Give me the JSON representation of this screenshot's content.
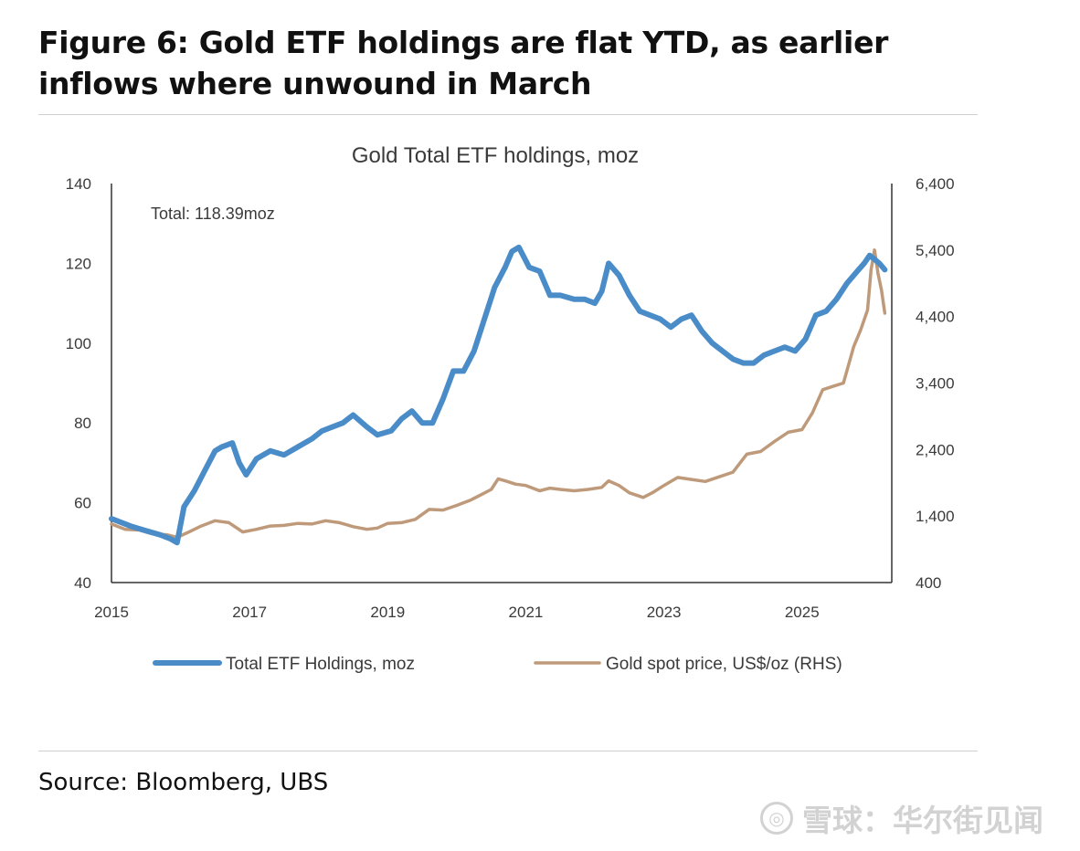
{
  "figure": {
    "title": "Figure 6: Gold ETF holdings are flat YTD, as earlier inflows where unwound in March",
    "source": "Source: Bloomberg, UBS"
  },
  "watermark": {
    "logo_glyph": "◎",
    "text": "雪球：华尔街见闻"
  },
  "chart_data": {
    "type": "line",
    "title": "Gold Total ETF holdings, moz",
    "annotation": "Total: 118.39moz",
    "x_ticks": [
      "2015",
      "2017",
      "2019",
      "2021",
      "2023",
      "2025"
    ],
    "xlim": [
      2015.0,
      2026.3
    ],
    "y_left": {
      "ticks": [
        "40",
        "60",
        "80",
        "100",
        "120",
        "140"
      ],
      "lim": [
        40,
        140
      ]
    },
    "y_right": {
      "ticks": [
        "400",
        "1,400",
        "2,400",
        "3,400",
        "4,400",
        "5,400",
        "6,400"
      ],
      "lim": [
        400,
        6400
      ]
    },
    "grid": false,
    "legend_position": "bottom",
    "colors": {
      "holdings": "#4a8cc8",
      "gold": "#bf9a7a",
      "axis": "#333333",
      "text": "#3a3a3a"
    },
    "series": [
      {
        "name": "Total ETF Holdings, moz",
        "axis": "left",
        "x": [
          2015.0,
          2015.15,
          2015.3,
          2015.5,
          2015.7,
          2015.85,
          2015.95,
          2016.05,
          2016.2,
          2016.35,
          2016.5,
          2016.6,
          2016.75,
          2016.85,
          2016.95,
          2017.1,
          2017.3,
          2017.5,
          2017.7,
          2017.9,
          2018.05,
          2018.2,
          2018.35,
          2018.5,
          2018.7,
          2018.85,
          2019.05,
          2019.2,
          2019.35,
          2019.5,
          2019.65,
          2019.8,
          2019.95,
          2020.1,
          2020.25,
          2020.4,
          2020.55,
          2020.7,
          2020.8,
          2020.9,
          2021.05,
          2021.2,
          2021.35,
          2021.5,
          2021.7,
          2021.85,
          2022.0,
          2022.1,
          2022.2,
          2022.35,
          2022.5,
          2022.65,
          2022.8,
          2022.95,
          2023.1,
          2023.25,
          2023.4,
          2023.55,
          2023.7,
          2023.85,
          2024.0,
          2024.15,
          2024.3,
          2024.45,
          2024.6,
          2024.75,
          2024.9,
          2025.05,
          2025.2,
          2025.35,
          2025.5,
          2025.65,
          2025.8,
          2025.9,
          2025.98,
          2026.05,
          2026.12,
          2026.2
        ],
        "values": [
          56,
          55,
          54,
          53,
          52,
          51,
          50,
          59,
          63,
          68,
          73,
          74,
          75,
          70,
          67,
          71,
          73,
          72,
          74,
          76,
          78,
          79,
          80,
          82,
          79,
          77,
          78,
          81,
          83,
          80,
          80,
          86,
          93,
          93,
          98,
          106,
          114,
          119,
          123,
          124,
          119,
          118,
          112,
          112,
          111,
          111,
          110,
          113,
          120,
          117,
          112,
          108,
          107,
          106,
          104,
          106,
          107,
          103,
          100,
          98,
          96,
          95,
          95,
          97,
          98,
          99,
          98,
          101,
          107,
          108,
          111,
          115,
          118,
          120,
          122,
          121,
          120,
          118.39
        ]
      },
      {
        "name": "Gold spot price, US$/oz (RHS)",
        "axis": "right",
        "x": [
          2015.0,
          2015.2,
          2015.4,
          2015.6,
          2015.8,
          2015.95,
          2016.1,
          2016.3,
          2016.5,
          2016.7,
          2016.9,
          2017.1,
          2017.3,
          2017.5,
          2017.7,
          2017.9,
          2018.1,
          2018.3,
          2018.5,
          2018.7,
          2018.85,
          2019.0,
          2019.2,
          2019.4,
          2019.6,
          2019.8,
          2020.0,
          2020.2,
          2020.35,
          2020.5,
          2020.6,
          2020.7,
          2020.85,
          2021.0,
          2021.2,
          2021.35,
          2021.5,
          2021.7,
          2021.9,
          2022.1,
          2022.2,
          2022.35,
          2022.5,
          2022.7,
          2022.85,
          2023.0,
          2023.2,
          2023.4,
          2023.6,
          2023.8,
          2024.0,
          2024.2,
          2024.4,
          2024.6,
          2024.8,
          2025.0,
          2025.15,
          2025.3,
          2025.45,
          2025.6,
          2025.75,
          2025.85,
          2025.95,
          2026.0,
          2026.05,
          2026.1,
          2026.15,
          2026.2
        ],
        "values": [
          1280,
          1200,
          1190,
          1130,
          1120,
          1080,
          1150,
          1250,
          1330,
          1300,
          1160,
          1200,
          1250,
          1260,
          1290,
          1280,
          1330,
          1300,
          1240,
          1200,
          1220,
          1290,
          1300,
          1350,
          1500,
          1490,
          1560,
          1640,
          1720,
          1800,
          1960,
          1930,
          1880,
          1860,
          1780,
          1820,
          1800,
          1780,
          1800,
          1830,
          1930,
          1860,
          1750,
          1680,
          1760,
          1860,
          1980,
          1950,
          1920,
          1990,
          2060,
          2330,
          2370,
          2520,
          2660,
          2700,
          2950,
          3300,
          3350,
          3400,
          3950,
          4200,
          4500,
          5100,
          5400,
          5050,
          4800,
          4450
        ]
      }
    ]
  }
}
